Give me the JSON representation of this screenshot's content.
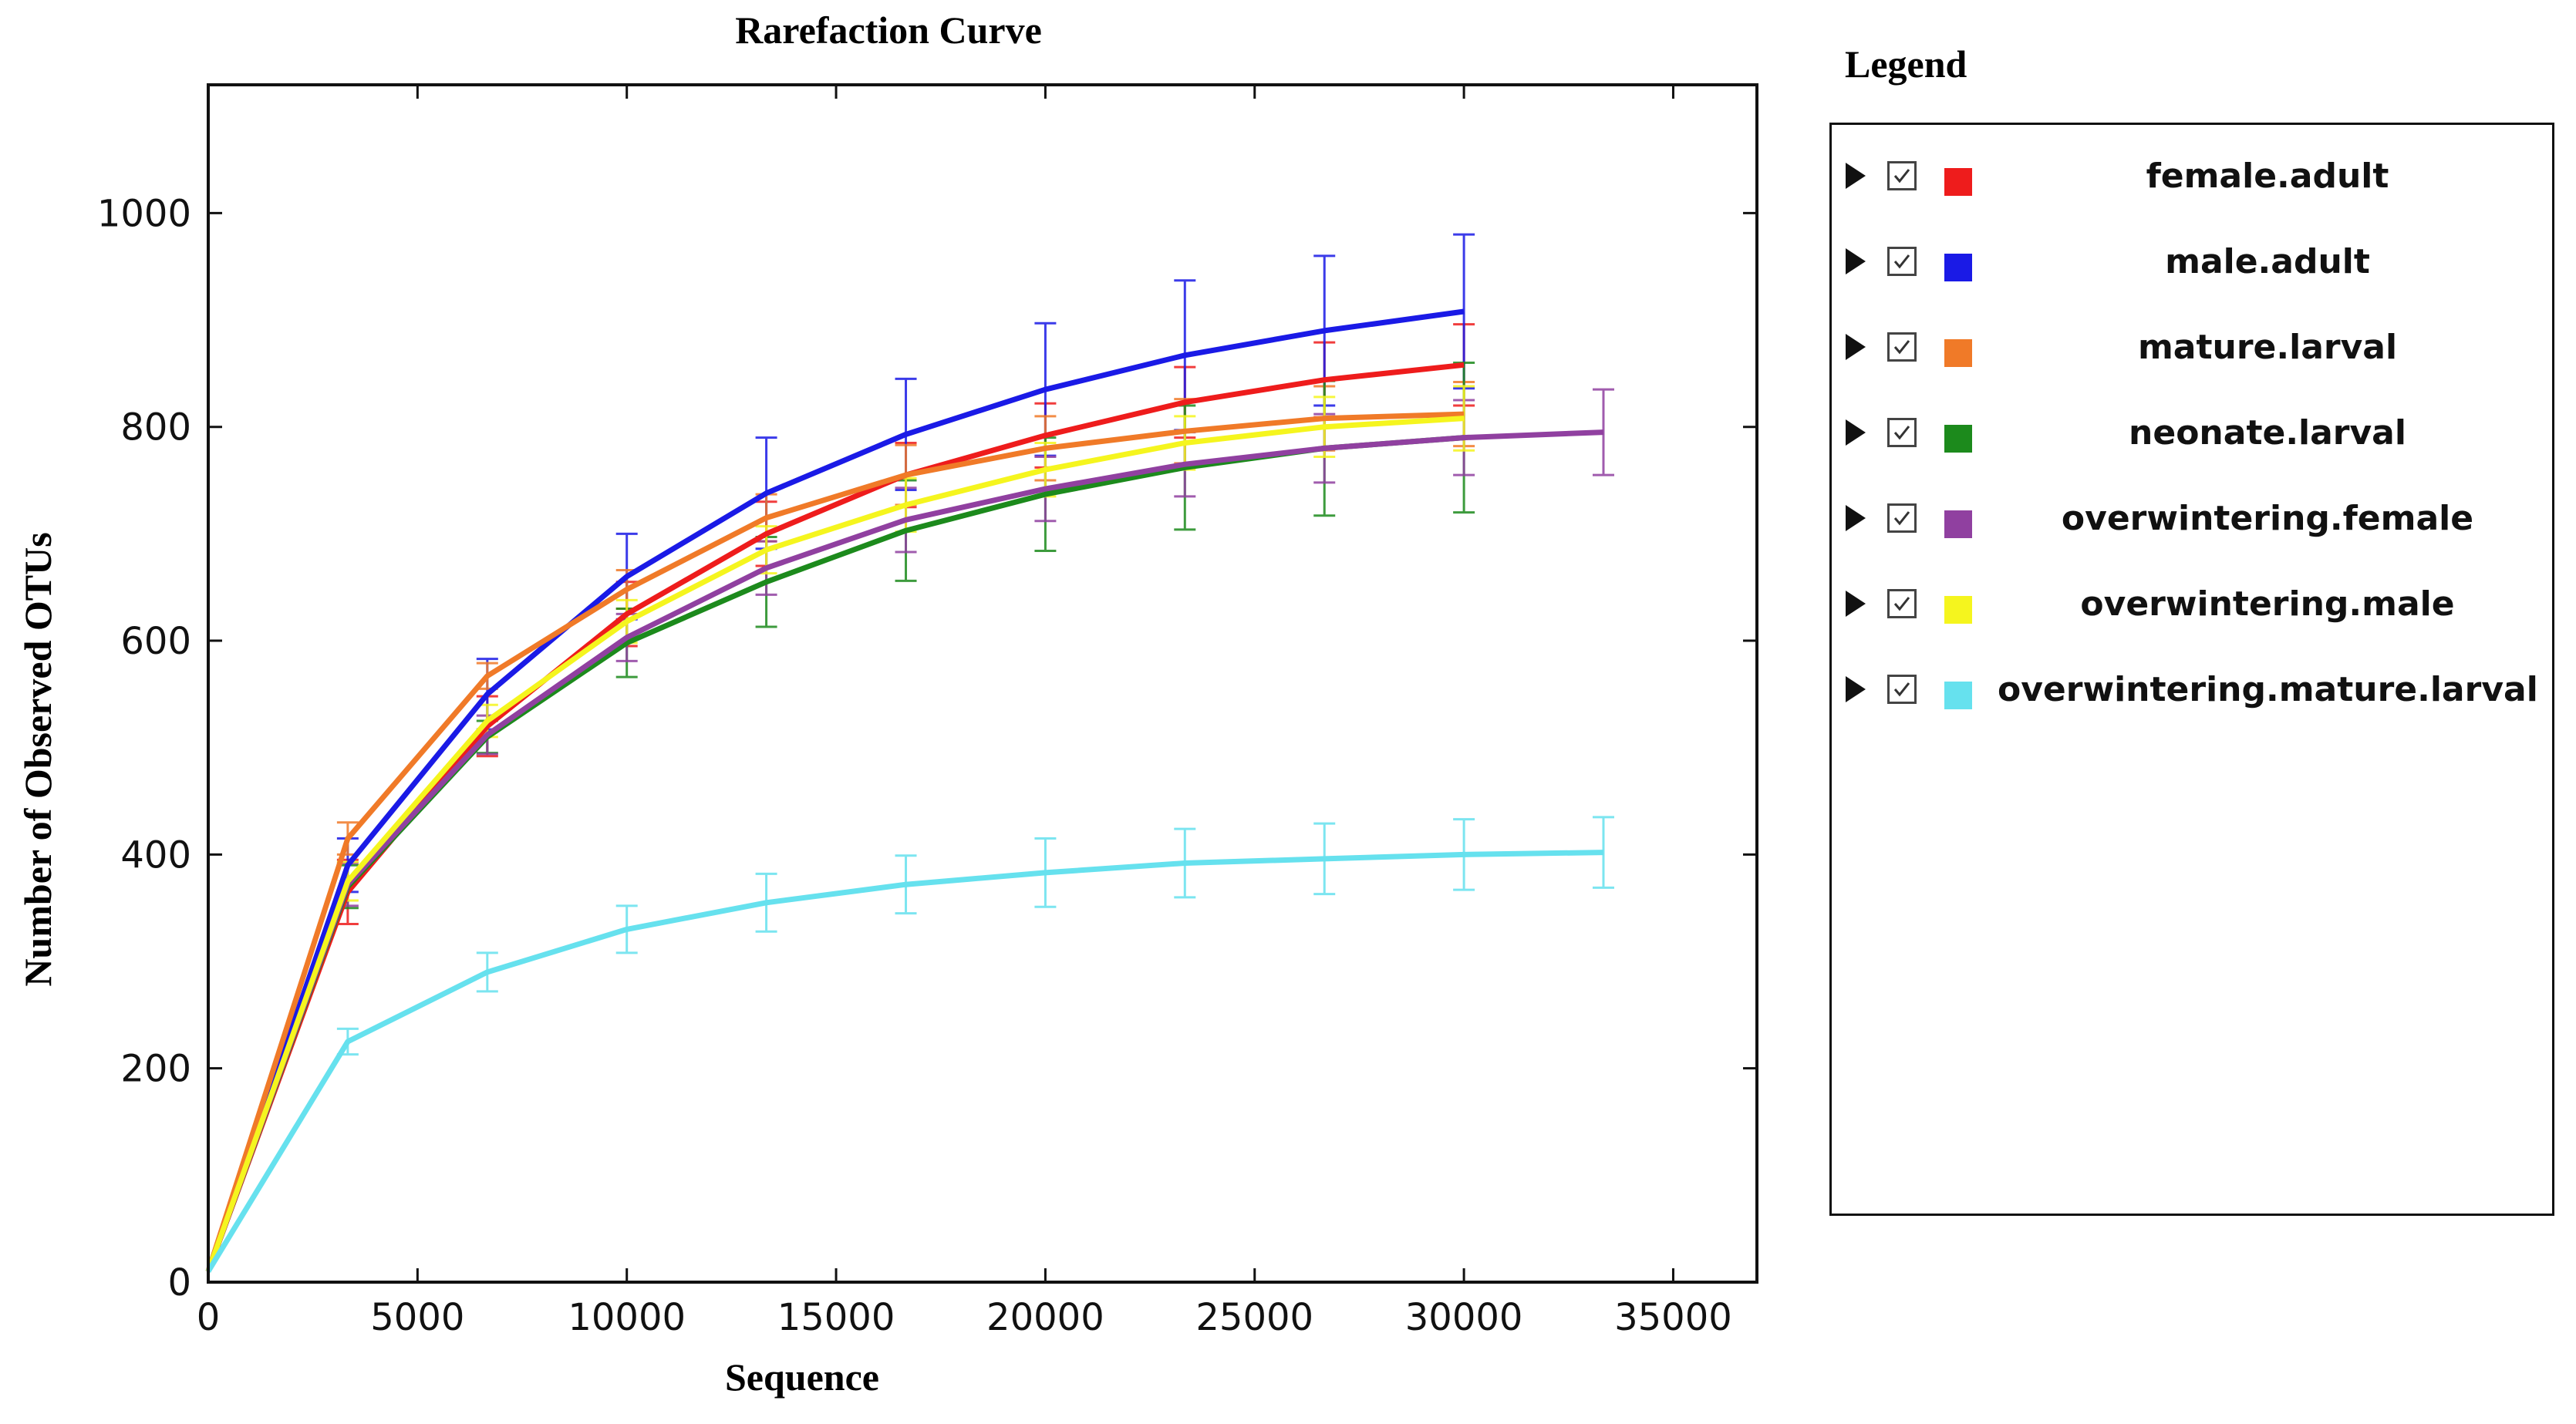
{
  "chart_data": {
    "type": "line",
    "title": "Rarefaction Curve",
    "xlabel": "Sequence",
    "ylabel": "Number of Observed OTUs",
    "xlim": [
      0,
      37000
    ],
    "ylim": [
      0,
      1120
    ],
    "xticks": [
      0,
      5000,
      10000,
      15000,
      20000,
      25000,
      30000,
      35000
    ],
    "yticks": [
      0,
      200,
      400,
      600,
      800,
      1000
    ],
    "grid": false,
    "legend_position": "right",
    "series": [
      {
        "name": "female.adult",
        "color": "#ee1c1c",
        "x": [
          0,
          3333,
          6667,
          10000,
          13333,
          16667,
          20000,
          23333,
          26667,
          30000
        ],
        "y": [
          10,
          365,
          520,
          625,
          700,
          755,
          792,
          823,
          844,
          858
        ],
        "err": [
          0,
          30,
          28,
          30,
          30,
          30,
          30,
          33,
          35,
          38
        ]
      },
      {
        "name": "male.adult",
        "color": "#1a1ae6",
        "x": [
          0,
          3333,
          6667,
          10000,
          13333,
          16667,
          20000,
          23333,
          26667,
          30000
        ],
        "y": [
          10,
          390,
          550,
          660,
          738,
          793,
          835,
          867,
          890,
          908
        ],
        "err": [
          0,
          25,
          33,
          40,
          52,
          52,
          62,
          70,
          70,
          72
        ]
      },
      {
        "name": "mature.larval",
        "color": "#f07a28",
        "x": [
          0,
          3333,
          6667,
          10000,
          13333,
          16667,
          20000,
          23333,
          26667,
          30000
        ],
        "y": [
          10,
          415,
          567,
          648,
          715,
          755,
          780,
          796,
          808,
          812
        ],
        "err": [
          0,
          15,
          12,
          18,
          22,
          28,
          30,
          30,
          30,
          30
        ]
      },
      {
        "name": "neonate.larval",
        "color": "#1c8a1c",
        "x": [
          0,
          3333,
          6667,
          10000,
          13333,
          16667,
          20000,
          23333,
          26667,
          30000
        ],
        "y": [
          10,
          370,
          510,
          598,
          655,
          703,
          737,
          762,
          780,
          790
        ],
        "err": [
          0,
          20,
          15,
          32,
          42,
          47,
          53,
          58,
          63,
          70
        ]
      },
      {
        "name": "overwintering.female",
        "color": "#9040a0",
        "x": [
          0,
          3333,
          6667,
          10000,
          13333,
          16667,
          20000,
          23333,
          26667,
          30000,
          33333
        ],
        "y": [
          10,
          372,
          512,
          603,
          668,
          713,
          742,
          765,
          780,
          790,
          795
        ],
        "err": [
          0,
          20,
          18,
          22,
          25,
          30,
          30,
          30,
          32,
          35,
          40
        ]
      },
      {
        "name": "overwintering.male",
        "color": "#f5f51e",
        "x": [
          0,
          3333,
          6667,
          10000,
          13333,
          16667,
          20000,
          23333,
          26667,
          30000
        ],
        "y": [
          10,
          375,
          525,
          618,
          685,
          727,
          760,
          785,
          800,
          808
        ],
        "err": [
          0,
          18,
          15,
          20,
          22,
          25,
          25,
          25,
          28,
          30
        ]
      },
      {
        "name": "overwintering.mature.larval",
        "color": "#66e1ee",
        "x": [
          0,
          3333,
          6667,
          10000,
          13333,
          16667,
          20000,
          23333,
          26667,
          30000,
          33333
        ],
        "y": [
          10,
          225,
          290,
          330,
          355,
          372,
          383,
          392,
          396,
          400,
          402
        ],
        "err": [
          0,
          12,
          18,
          22,
          27,
          27,
          32,
          32,
          33,
          33,
          33
        ]
      }
    ]
  },
  "legend": {
    "title": "Legend",
    "items": [
      {
        "label": "female.adult",
        "color": "#ee1c1c"
      },
      {
        "label": "male.adult",
        "color": "#1a1ae6"
      },
      {
        "label": "mature.larval",
        "color": "#f07a28"
      },
      {
        "label": "neonate.larval",
        "color": "#1c8a1c"
      },
      {
        "label": "overwintering.female",
        "color": "#9040a0"
      },
      {
        "label": "overwintering.male",
        "color": "#f5f51e"
      },
      {
        "label": "overwintering.mature.larval",
        "color": "#66e1ee"
      }
    ]
  }
}
